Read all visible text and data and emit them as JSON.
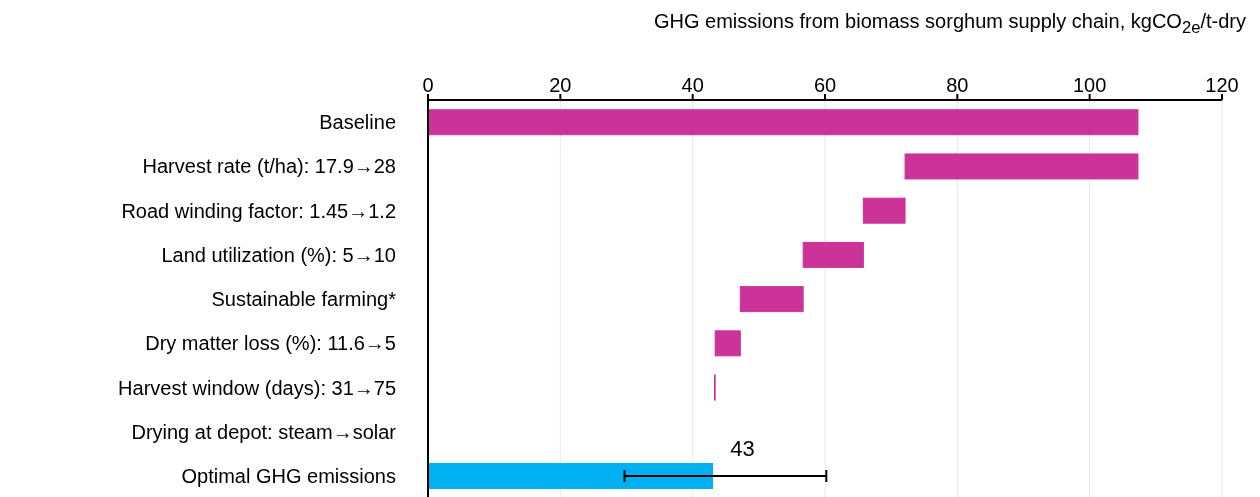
{
  "chart_data": {
    "type": "bar",
    "orientation": "horizontal",
    "xlabel": "GHG emissions from biomass sorghum supply chain, kgCO$_{2e}$/t-dry",
    "categories": [
      "Baseline",
      "Harvest rate (t/ha): 17.9→28",
      "Road winding factor: 1.45→1.2 ",
      "Land utilization (%): 5→10",
      "Sustainable farming*",
      "Dry matter loss (%): 11.6→5",
      "Harvest window (days): 31→75",
      "Drying at depot: steam→solar",
      "Optimal GHG emissions"
    ],
    "values": [
      107.3,
      -35.2,
      -6.3,
      -9.1,
      -9.5,
      -3.8,
      -0.1,
      0,
      43
    ],
    "base": [
      0,
      107.3,
      72.1,
      65.8,
      56.7,
      47.2,
      43.4,
      null,
      null
    ],
    "colors": [
      "#cc3399",
      "#cc3399",
      "#cc3399",
      "#cc3399",
      "#cc3399",
      "#cc3399",
      "#cc3399",
      "#cc3399",
      "#00b0f0"
    ],
    "errors": [
      null,
      null,
      null,
      null,
      null,
      null,
      null,
      null,
      [
        29.7,
        60.2
      ]
    ],
    "value_labels": [
      null,
      null,
      null,
      null,
      null,
      null,
      null,
      null,
      "43"
    ],
    "xlim": [
      0,
      120
    ],
    "xticks": [
      0,
      20,
      40,
      60,
      80,
      100,
      120
    ],
    "grid": "x"
  }
}
